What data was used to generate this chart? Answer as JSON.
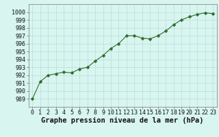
{
  "x": [
    0,
    1,
    2,
    3,
    4,
    5,
    6,
    7,
    8,
    9,
    10,
    11,
    12,
    13,
    14,
    15,
    16,
    17,
    18,
    19,
    20,
    21,
    22,
    23
  ],
  "y": [
    989.0,
    991.2,
    992.0,
    992.2,
    992.4,
    992.3,
    992.8,
    993.0,
    993.8,
    994.5,
    995.4,
    996.0,
    997.0,
    997.0,
    996.7,
    996.6,
    997.0,
    997.6,
    998.4,
    999.0,
    999.4,
    999.7,
    999.9,
    999.8
  ],
  "line_color": "#2d6a2d",
  "marker": "D",
  "marker_size": 2.5,
  "bg_color": "#d8f5f0",
  "grid_color": "#b8ddd8",
  "xlabel": "Graphe pression niveau de la mer (hPa)",
  "ylim": [
    988,
    1001
  ],
  "xlim_min": -0.5,
  "xlim_max": 23.5,
  "yticks": [
    989,
    990,
    991,
    992,
    993,
    994,
    995,
    996,
    997,
    998,
    999,
    1000
  ],
  "xticks": [
    0,
    1,
    2,
    3,
    4,
    5,
    6,
    7,
    8,
    9,
    10,
    11,
    12,
    13,
    14,
    15,
    16,
    17,
    18,
    19,
    20,
    21,
    22,
    23
  ],
  "xlabel_fontsize": 7.5,
  "tick_fontsize": 6,
  "ytick_fontsize": 6
}
